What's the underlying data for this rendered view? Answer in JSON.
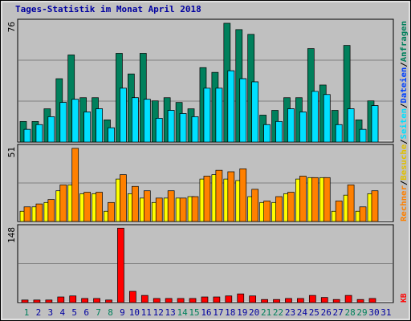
{
  "chart_data": [
    {
      "type": "bar",
      "title": "Tages-Statistik im Monat April 2018",
      "legend_separator": "/",
      "ylim": [
        0,
        76
      ],
      "yticks": [
        76
      ],
      "series": [
        {
          "name": "Anfragen",
          "color": "#00805c",
          "values": [
            13,
            13,
            21,
            40,
            55,
            28,
            28,
            14,
            56,
            43,
            56,
            26,
            28,
            25,
            21,
            47,
            44,
            75,
            71,
            68,
            17,
            20,
            28,
            28,
            59,
            36,
            20,
            61,
            14,
            26,
            null
          ]
        },
        {
          "name": "Dateien",
          "color": "#0040ff",
          "values": [
            8,
            11,
            16,
            25,
            27,
            19,
            21,
            9,
            34,
            28,
            27,
            15,
            20,
            18,
            16,
            34,
            34,
            45,
            40,
            38,
            11,
            13,
            21,
            19,
            32,
            30,
            11,
            21,
            8,
            23,
            null
          ]
        },
        {
          "name": "Seiten",
          "color": "#00e0ff",
          "values": [
            8,
            11,
            16,
            25,
            27,
            19,
            21,
            9,
            34,
            28,
            27,
            15,
            20,
            18,
            16,
            34,
            34,
            45,
            40,
            38,
            11,
            13,
            21,
            19,
            32,
            30,
            11,
            21,
            8,
            23,
            null
          ]
        }
      ]
    },
    {
      "type": "bar",
      "ylim": [
        0,
        51
      ],
      "yticks": [
        51
      ],
      "series": [
        {
          "name": "Besuche",
          "color": "#ffff00",
          "values": [
            7,
            10,
            13,
            21,
            25,
            19,
            19,
            7,
            29,
            19,
            16,
            13,
            16,
            16,
            17,
            29,
            32,
            29,
            28,
            17,
            13,
            13,
            19,
            29,
            30,
            30,
            7,
            18,
            7,
            19,
            null
          ]
        },
        {
          "name": "Rechner",
          "color": "#ff8000",
          "values": [
            10,
            12,
            15,
            25,
            50,
            20,
            20,
            13,
            32,
            24,
            21,
            16,
            21,
            16,
            17,
            31,
            35,
            34,
            36,
            22,
            14,
            17,
            20,
            31,
            30,
            30,
            14,
            25,
            10,
            21,
            null
          ]
        }
      ]
    },
    {
      "type": "bar",
      "ylim": [
        0,
        148
      ],
      "yticks": [
        148
      ],
      "categories": [
        "1",
        "2",
        "3",
        "4",
        "5",
        "6",
        "7",
        "8",
        "9",
        "10",
        "11",
        "12",
        "13",
        "14",
        "15",
        "16",
        "17",
        "18",
        "19",
        "20",
        "21",
        "22",
        "23",
        "24",
        "25",
        "26",
        "27",
        "28",
        "29",
        "30",
        "31"
      ],
      "category_colors": [
        "#00805c",
        "#0000a0",
        "#0000a0",
        "#0000a0",
        "#0000a0",
        "#0000a0",
        "#00805c",
        "#00805c",
        "#0000a0",
        "#0000a0",
        "#0000a0",
        "#0000a0",
        "#0000a0",
        "#00805c",
        "#00805c",
        "#0000a0",
        "#0000a0",
        "#0000a0",
        "#0000a0",
        "#0000a0",
        "#00805c",
        "#00805c",
        "#0000a0",
        "#0000a0",
        "#0000a0",
        "#0000a0",
        "#0000a0",
        "#00805c",
        "#00805c",
        "#0000a0",
        "#0000a0"
      ],
      "series": [
        {
          "name": "KB",
          "color": "#ff0000",
          "values": [
            5,
            5,
            5,
            11,
            13,
            8,
            8,
            5,
            146,
            22,
            14,
            8,
            8,
            8,
            8,
            11,
            11,
            13,
            17,
            13,
            6,
            6,
            8,
            8,
            14,
            10,
            6,
            14,
            6,
            8,
            null
          ]
        }
      ]
    }
  ]
}
